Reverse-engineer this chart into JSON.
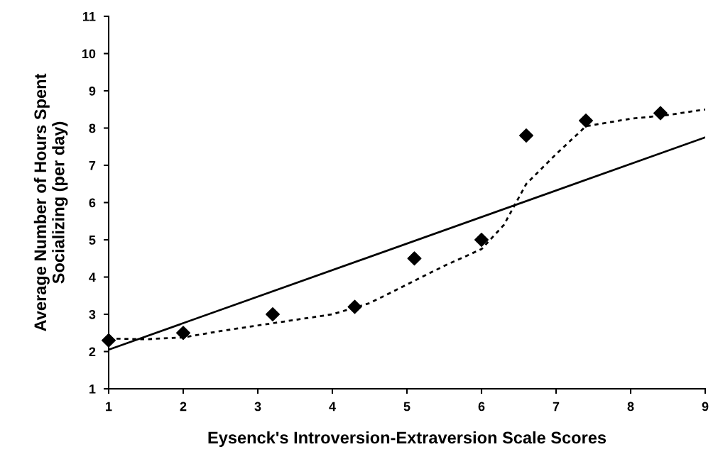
{
  "chart_data": {
    "type": "scatter",
    "xlabel": "Eysenck's Introversion-Extraversion Scale Scores",
    "ylabel": "Average Number of Hours Spent\nSocializing (per day)",
    "xlim": [
      1,
      9
    ],
    "ylim": [
      1,
      11
    ],
    "xticks": [
      1,
      2,
      3,
      4,
      5,
      6,
      7,
      8,
      9
    ],
    "yticks": [
      1,
      2,
      3,
      4,
      5,
      6,
      7,
      8,
      9,
      10,
      11
    ],
    "grid": false,
    "legend": false,
    "marker": "diamond",
    "series": [
      {
        "color": "#000000",
        "x": [
          1,
          2,
          3.2,
          4.3,
          5.1,
          6,
          6.6,
          7.4,
          8.4
        ],
        "values": [
          2.3,
          2.5,
          3.0,
          3.2,
          4.5,
          5.0,
          7.8,
          8.2,
          8.4
        ]
      },
      {
        "type": "line",
        "color": "#000000",
        "marker": "none",
        "line_style": "solid",
        "x": [
          1,
          9
        ],
        "values": [
          2.05,
          7.75
        ]
      },
      {
        "type": "line",
        "color": "#000000",
        "marker": "none",
        "line_style": "dotted",
        "x": [
          1,
          1.5,
          2,
          2.5,
          3,
          3.5,
          4,
          4.5,
          5,
          5.5,
          6,
          6.3,
          6.6,
          7,
          7.4,
          7.7,
          8,
          8.5,
          9
        ],
        "values": [
          2.35,
          2.33,
          2.38,
          2.55,
          2.7,
          2.85,
          3.0,
          3.3,
          3.8,
          4.3,
          4.75,
          5.4,
          6.5,
          7.3,
          8.05,
          8.15,
          8.25,
          8.35,
          8.5
        ]
      }
    ]
  }
}
